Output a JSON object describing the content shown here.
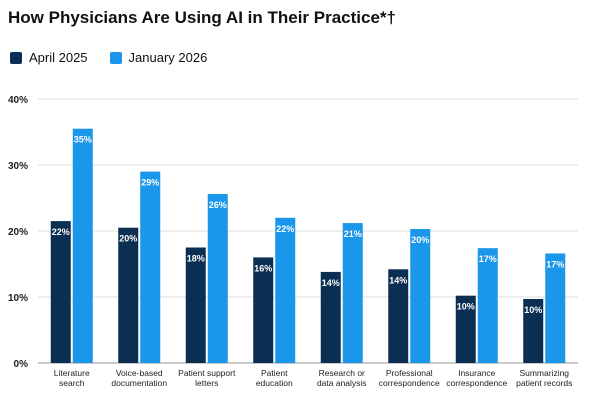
{
  "chart_data": {
    "type": "bar",
    "title": "How Physicians Are Using AI in Their Practice*†",
    "xlabel": "",
    "ylabel": "",
    "ylim": [
      0,
      40
    ],
    "yticks": [
      "0%",
      "10%",
      "20%",
      "30%",
      "40%"
    ],
    "ytick_values": [
      0,
      10,
      20,
      30,
      40
    ],
    "grid": true,
    "legend_position": "top-left",
    "categories": [
      [
        "Literature",
        "search"
      ],
      [
        "Voice-based",
        "documentation"
      ],
      [
        "Patient support",
        "letters"
      ],
      [
        "Patient",
        "education"
      ],
      [
        "Research or",
        "data analysis"
      ],
      [
        "Professional",
        "correspondence"
      ],
      [
        "Insurance",
        "correspondence"
      ],
      [
        "Summarizing",
        "patient records"
      ]
    ],
    "series": [
      {
        "name": "April 2025",
        "color": "#0b2f52",
        "values": [
          21.5,
          20.5,
          17.5,
          16,
          13.8,
          14.2,
          10.2,
          9.7
        ],
        "labels": [
          "22%",
          "20%",
          "18%",
          "16%",
          "14%",
          "14%",
          "10%",
          "10%"
        ]
      },
      {
        "name": "January 2026",
        "color": "#1a96ea",
        "values": [
          35.5,
          29,
          25.6,
          22,
          21.2,
          20.3,
          17.4,
          16.6
        ],
        "labels": [
          "35%",
          "29%",
          "26%",
          "22%",
          "21%",
          "20%",
          "17%",
          "17%"
        ]
      }
    ]
  }
}
